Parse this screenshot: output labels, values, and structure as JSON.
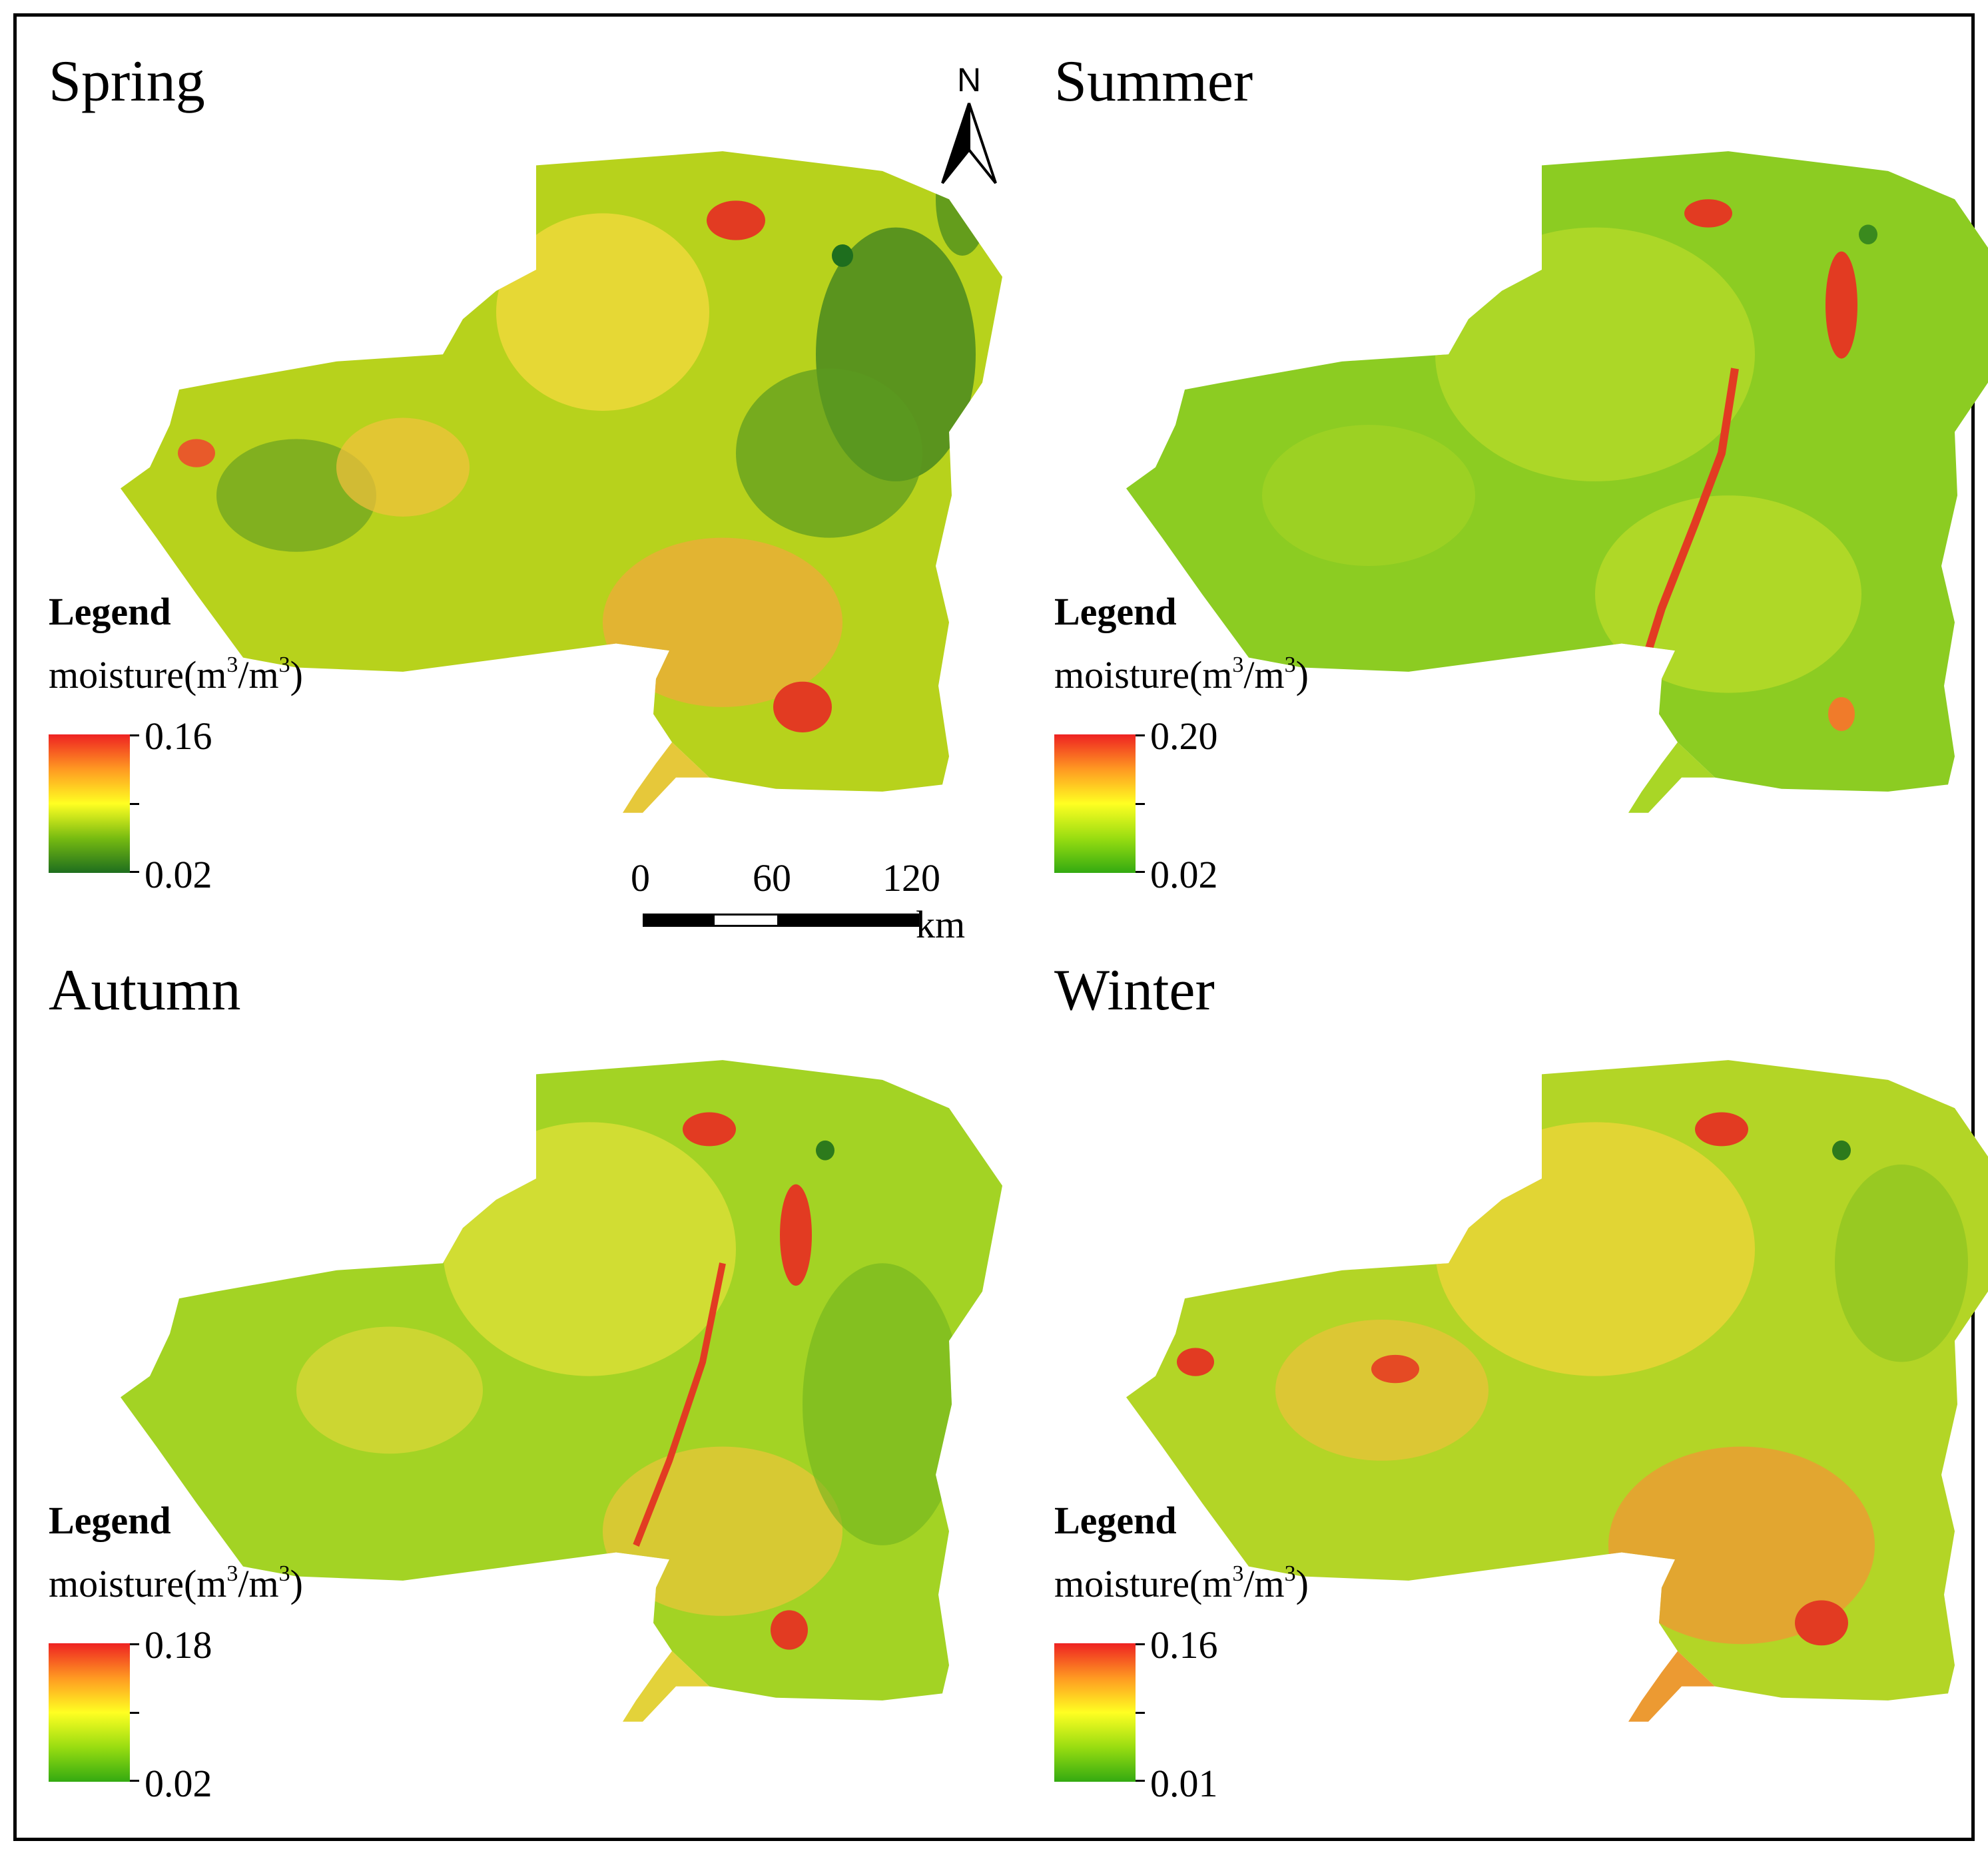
{
  "panels": {
    "spring": {
      "season": "Spring",
      "legend_title": "Legend",
      "unit_main": "moisture(m",
      "unit_mid": "/m",
      "unit_end": ")",
      "unit_sup": "3",
      "max_label": "0.16",
      "min_label": "0.02",
      "ramp_colors": [
        "#ee2222",
        "#ff9922",
        "#ffff22",
        "#77bb11",
        "#1e6e1e"
      ]
    },
    "summer": {
      "season": "Summer",
      "legend_title": "Legend",
      "unit_main": "moisture(m",
      "unit_mid": "/m",
      "unit_end": ")",
      "unit_sup": "3",
      "max_label": "0.20",
      "min_label": "0.02",
      "ramp_colors": [
        "#ee2222",
        "#ff9922",
        "#ffff22",
        "#99dd11",
        "#33aa11"
      ]
    },
    "autumn": {
      "season": "Autumn",
      "legend_title": "Legend",
      "unit_main": "moisture(m",
      "unit_mid": "/m",
      "unit_end": ")",
      "unit_sup": "3",
      "max_label": "0.18",
      "min_label": "0.02",
      "ramp_colors": [
        "#ee2222",
        "#ff9922",
        "#ffff22",
        "#99dd11",
        "#33aa11"
      ]
    },
    "winter": {
      "season": "Winter",
      "legend_title": "Legend",
      "unit_main": "moisture(m",
      "unit_mid": "/m",
      "unit_end": ")",
      "unit_sup": "3",
      "max_label": "0.16",
      "min_label": "0.01",
      "ramp_colors": [
        "#ee2222",
        "#ff9922",
        "#ffff22",
        "#99dd11",
        "#33aa11"
      ]
    }
  },
  "north_arrow": {
    "label": "N"
  },
  "scale_bar": {
    "labels": [
      "0",
      "60",
      "120"
    ],
    "unit": "km"
  }
}
